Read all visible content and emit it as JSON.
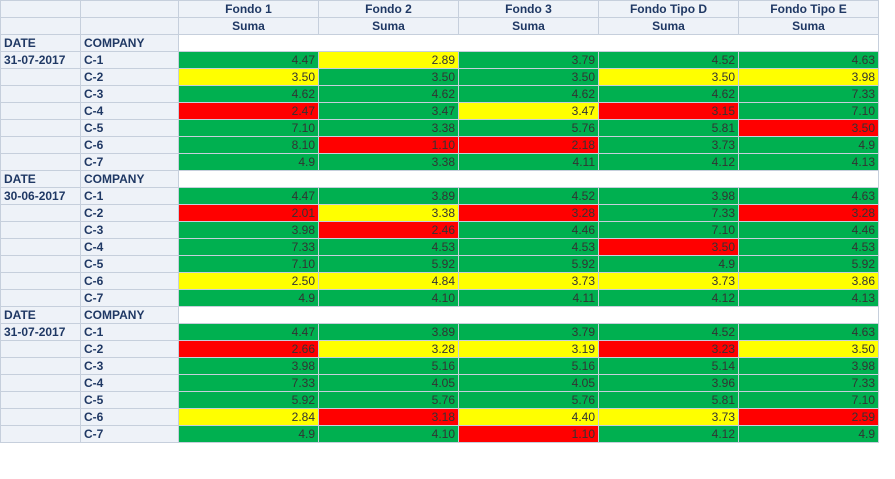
{
  "table": {
    "columns": [
      {
        "name": "Fondo 1",
        "measure": "Suma"
      },
      {
        "name": "Fondo 2",
        "measure": "Suma"
      },
      {
        "name": "Fondo 3",
        "measure": "Suma"
      },
      {
        "name": "Fondo Tipo D",
        "measure": "Suma"
      },
      {
        "name": "Fondo Tipo E",
        "measure": "Suma"
      }
    ],
    "groups": [
      {
        "date_label": "DATE",
        "company_label": "COMPANY",
        "date": "31-07-2017",
        "rows": [
          {
            "company": "C-1",
            "values": [
              "4.47",
              "2.89",
              "3.79",
              "4.52",
              "4.63"
            ],
            "colors": [
              "#00b050",
              "#ffff00",
              "#00b050",
              "#00b050",
              "#00b050"
            ]
          },
          {
            "company": "C-2",
            "values": [
              "3.50",
              "3.50",
              "3.50",
              "3.50",
              "3.98"
            ],
            "colors": [
              "#ffff00",
              "#00b050",
              "#00b050",
              "#ffff00",
              "#ffff00"
            ]
          },
          {
            "company": "C-3",
            "values": [
              "4.62",
              "4.62",
              "4.62",
              "4.62",
              "7.33"
            ],
            "colors": [
              "#00b050",
              "#00b050",
              "#00b050",
              "#00b050",
              "#00b050"
            ]
          },
          {
            "company": "C-4",
            "values": [
              "2.47",
              "3.47",
              "3.47",
              "3.15",
              "7.10"
            ],
            "colors": [
              "#ff0000",
              "#00b050",
              "#ffff00",
              "#ff0000",
              "#00b050"
            ]
          },
          {
            "company": "C-5",
            "values": [
              "7.10",
              "3.38",
              "5.76",
              "5.81",
              "3.50"
            ],
            "colors": [
              "#00b050",
              "#00b050",
              "#00b050",
              "#00b050",
              "#ff0000"
            ]
          },
          {
            "company": "C-6",
            "values": [
              "8.10",
              "1.10",
              "2.18",
              "3.73",
              "4.9"
            ],
            "colors": [
              "#00b050",
              "#ff0000",
              "#ff0000",
              "#00b050",
              "#00b050"
            ]
          },
          {
            "company": "C-7",
            "values": [
              "4.9",
              "3.38",
              "4.11",
              "4.12",
              "4.13"
            ],
            "colors": [
              "#00b050",
              "#00b050",
              "#00b050",
              "#00b050",
              "#00b050"
            ]
          }
        ]
      },
      {
        "date_label": "DATE",
        "company_label": "COMPANY",
        "date": "30-06-2017",
        "rows": [
          {
            "company": "C-1",
            "values": [
              "4.47",
              "3.89",
              "4.52",
              "3.98",
              "4.63"
            ],
            "colors": [
              "#00b050",
              "#00b050",
              "#00b050",
              "#00b050",
              "#00b050"
            ]
          },
          {
            "company": "C-2",
            "values": [
              "2.01",
              "3.38",
              "3.28",
              "7.33",
              "3.28"
            ],
            "colors": [
              "#ff0000",
              "#ffff00",
              "#ff0000",
              "#00b050",
              "#ff0000"
            ]
          },
          {
            "company": "C-3",
            "values": [
              "3.98",
              "2.46",
              "4.46",
              "7.10",
              "4.46"
            ],
            "colors": [
              "#00b050",
              "#ff0000",
              "#00b050",
              "#00b050",
              "#00b050"
            ]
          },
          {
            "company": "C-4",
            "values": [
              "7.33",
              "4.53",
              "4.53",
              "3.50",
              "4.53"
            ],
            "colors": [
              "#00b050",
              "#00b050",
              "#00b050",
              "#ff0000",
              "#00b050"
            ]
          },
          {
            "company": "C-5",
            "values": [
              "7.10",
              "5.92",
              "5.92",
              "4.9",
              "5.92"
            ],
            "colors": [
              "#00b050",
              "#00b050",
              "#00b050",
              "#00b050",
              "#00b050"
            ]
          },
          {
            "company": "C-6",
            "values": [
              "2.50",
              "4.84",
              "3.73",
              "3.73",
              "3.86"
            ],
            "colors": [
              "#ffff00",
              "#ffff00",
              "#ffff00",
              "#ffff00",
              "#ffff00"
            ]
          },
          {
            "company": "C-7",
            "values": [
              "4.9",
              "4.10",
              "4.11",
              "4.12",
              "4.13"
            ],
            "colors": [
              "#00b050",
              "#00b050",
              "#00b050",
              "#00b050",
              "#00b050"
            ]
          }
        ]
      },
      {
        "date_label": "DATE",
        "company_label": "COMPANY",
        "date": "31-07-2017",
        "rows": [
          {
            "company": "C-1",
            "values": [
              "4.47",
              "3.89",
              "3.79",
              "4.52",
              "4.63"
            ],
            "colors": [
              "#00b050",
              "#00b050",
              "#00b050",
              "#00b050",
              "#00b050"
            ]
          },
          {
            "company": "C-2",
            "values": [
              "2.66",
              "3.28",
              "3.19",
              "3.23",
              "3.50"
            ],
            "colors": [
              "#ff0000",
              "#ffff00",
              "#ffff00",
              "#ff0000",
              "#ffff00"
            ]
          },
          {
            "company": "C-3",
            "values": [
              "3.98",
              "5.16",
              "5.16",
              "5.14",
              "3.98"
            ],
            "colors": [
              "#00b050",
              "#00b050",
              "#00b050",
              "#00b050",
              "#00b050"
            ]
          },
          {
            "company": "C-4",
            "values": [
              "7.33",
              "4.05",
              "4.05",
              "3.96",
              "7.33"
            ],
            "colors": [
              "#00b050",
              "#00b050",
              "#00b050",
              "#00b050",
              "#00b050"
            ]
          },
          {
            "company": "C-5",
            "values": [
              "5.92",
              "5.76",
              "5.76",
              "5.81",
              "7.10"
            ],
            "colors": [
              "#00b050",
              "#00b050",
              "#00b050",
              "#00b050",
              "#00b050"
            ]
          },
          {
            "company": "C-6",
            "values": [
              "2.84",
              "3.18",
              "4.40",
              "3.73",
              "2.59"
            ],
            "colors": [
              "#ffff00",
              "#ff0000",
              "#ffff00",
              "#ffff00",
              "#ff0000"
            ]
          },
          {
            "company": "C-7",
            "values": [
              "4.9",
              "4.10",
              "1.10",
              "4.12",
              "4.9"
            ],
            "colors": [
              "#00b050",
              "#00b050",
              "#ff0000",
              "#00b050",
              "#00b050"
            ]
          }
        ]
      }
    ]
  }
}
